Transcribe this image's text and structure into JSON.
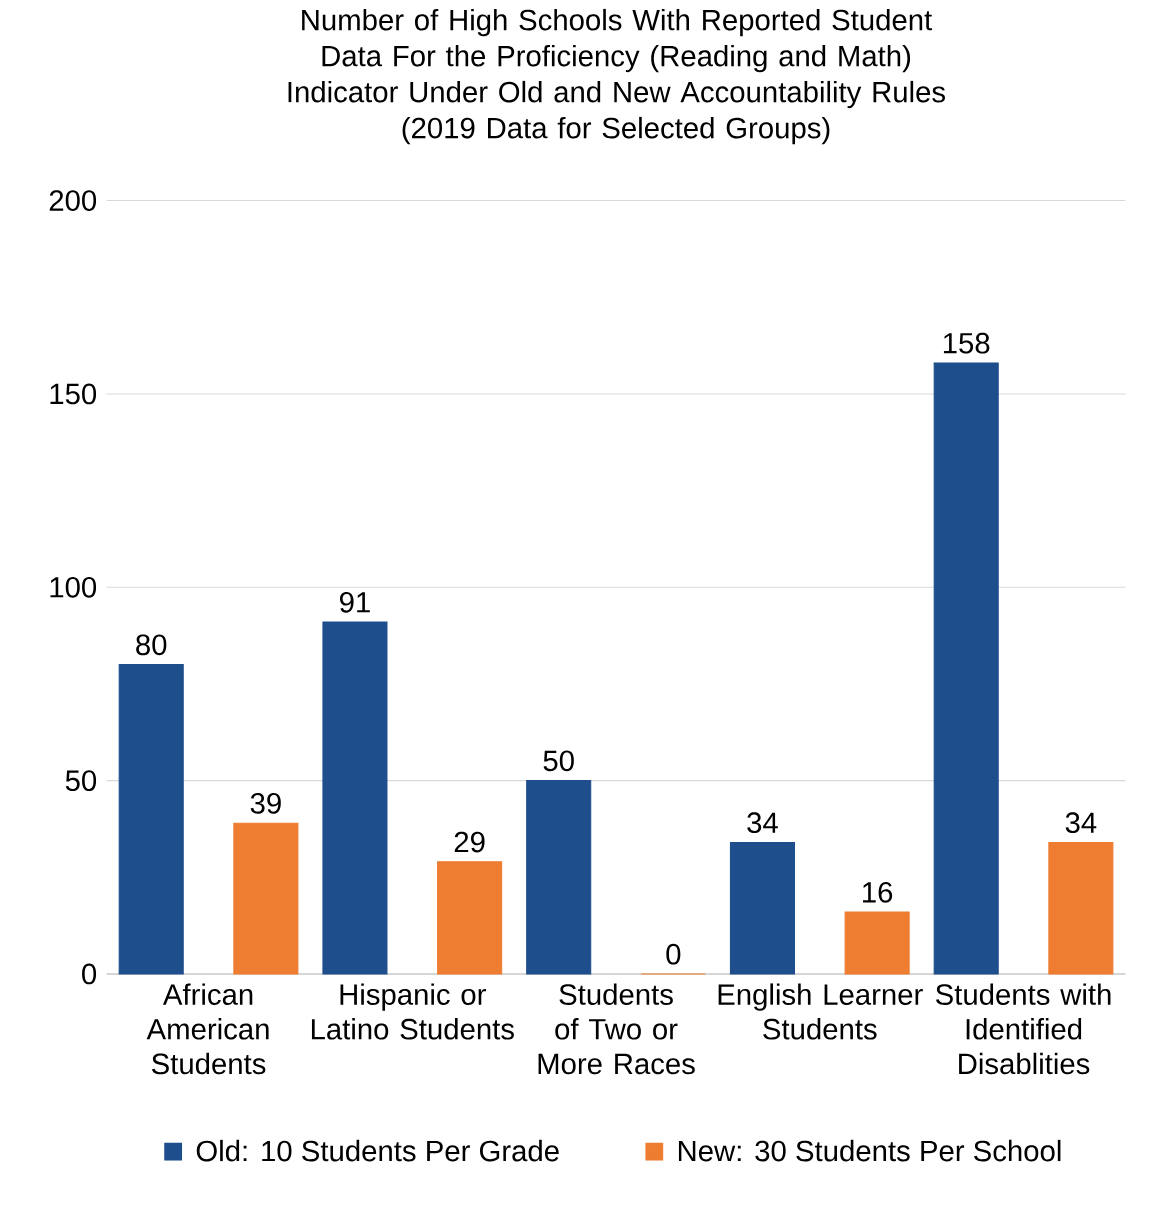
{
  "chart_data": {
    "type": "bar",
    "title": "Number of High Schools With Reported Student Data For the Proficiency (Reading and Math) Indicator Under Old and New Accountability Rules",
    "subtitle": "(2019 Data for Selected Groups)",
    "categories": [
      "African American Students",
      "Hispanic or Latino Students",
      "Students of Two or More Races",
      "English Learner Students",
      "Students with Identified Disablities"
    ],
    "series": [
      {
        "name": "Old: 10 Students Per Grade",
        "color": "#1f4e8c",
        "values": [
          80,
          91,
          50,
          34,
          158
        ]
      },
      {
        "name": "New: 30 Students Per School",
        "color": "#ee7d31",
        "values": [
          39,
          29,
          0,
          16,
          34
        ]
      }
    ],
    "ylim": [
      0,
      200
    ],
    "yticks": [
      0,
      50,
      100,
      150,
      200
    ],
    "grid": "y",
    "legend": "bottom",
    "data_labels": true
  }
}
